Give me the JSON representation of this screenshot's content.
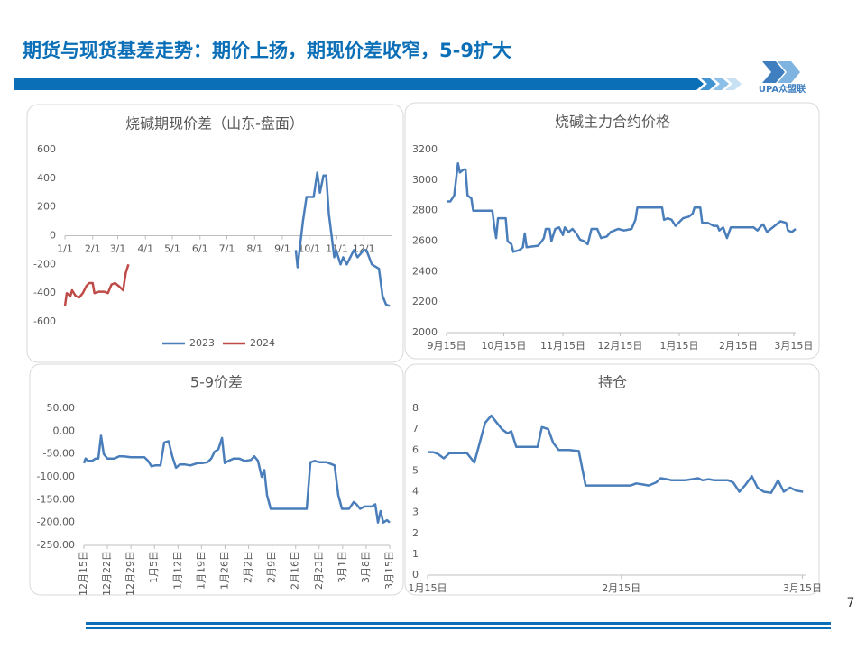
{
  "header": {
    "title": "期货与现货基差走势：期价上扬，期现价差收窄，5-9扩大",
    "logo_text": "UPA众盟联"
  },
  "page_number": "7",
  "chart_data": [
    {
      "type": "line",
      "title": "烧碱期现价差（山东-盘面）",
      "grid": false,
      "legend": "bottom",
      "xlim": [
        1,
        366
      ],
      "xticks": [
        {
          "value": 1,
          "label": "1/1"
        },
        {
          "value": 32,
          "label": "2/1"
        },
        {
          "value": 60,
          "label": "3/1"
        },
        {
          "value": 91,
          "label": "4/1"
        },
        {
          "value": 121,
          "label": "5/1"
        },
        {
          "value": 152,
          "label": "6/1"
        },
        {
          "value": 182,
          "label": "7/1"
        },
        {
          "value": 213,
          "label": "8/1"
        },
        {
          "value": 244,
          "label": "9/1"
        },
        {
          "value": 274,
          "label": "10/1"
        },
        {
          "value": 305,
          "label": "11/1"
        },
        {
          "value": 335,
          "label": "12/1"
        }
      ],
      "ylim": [
        -600,
        600
      ],
      "yticks": [
        -600,
        -400,
        -200,
        0,
        200,
        400,
        600
      ],
      "series": [
        {
          "name": "2023",
          "color": "#4a7ebb",
          "x": [
            259,
            261,
            267,
            271,
            279,
            283,
            286,
            290,
            293,
            296,
            299,
            302,
            304,
            309,
            312,
            316,
            324,
            328,
            335,
            338,
            344,
            352,
            356,
            360,
            364
          ],
          "values": [
            -100,
            -220,
            100,
            270,
            270,
            440,
            300,
            420,
            420,
            150,
            0,
            -150,
            -100,
            -200,
            -150,
            -200,
            -100,
            -150,
            -100,
            -100,
            -200,
            -230,
            -420,
            -480,
            -490
          ]
        },
        {
          "name": "2024",
          "color": "#be4b48",
          "x": [
            1,
            3,
            7,
            9,
            13,
            17,
            21,
            25,
            28,
            32,
            34,
            39,
            45,
            49,
            53,
            57,
            61,
            66,
            69,
            72
          ],
          "values": [
            -490,
            -400,
            -420,
            -380,
            -420,
            -430,
            -400,
            -350,
            -330,
            -330,
            -400,
            -390,
            -390,
            -400,
            -340,
            -330,
            -350,
            -380,
            -260,
            -200
          ]
        }
      ]
    },
    {
      "type": "line",
      "title": "烧碱主力合约价格",
      "grid": false,
      "xlim": [
        0,
        183
      ],
      "xticks": [
        {
          "value": 0,
          "label": "9月15日"
        },
        {
          "value": 30,
          "label": "10月15日"
        },
        {
          "value": 61,
          "label": "11月15日"
        },
        {
          "value": 91,
          "label": "12月15日"
        },
        {
          "value": 122,
          "label": "1月15日"
        },
        {
          "value": 153,
          "label": "2月15日"
        },
        {
          "value": 182,
          "label": "3月15日"
        }
      ],
      "ylim": [
        2000,
        3200
      ],
      "yticks": [
        2000,
        2200,
        2400,
        2600,
        2800,
        3000,
        3200
      ],
      "x": [
        0,
        2,
        4,
        6,
        7,
        9,
        10,
        11,
        13,
        14,
        24,
        25,
        26,
        27,
        31,
        32,
        34,
        35,
        38,
        40,
        41,
        42,
        48,
        50,
        51,
        52,
        54,
        55,
        57,
        59,
        61,
        62,
        64,
        66,
        68,
        70,
        72,
        74,
        76,
        79,
        81,
        84,
        86,
        88,
        90,
        93,
        97,
        99,
        100,
        105,
        113,
        114,
        116,
        118,
        120,
        124,
        127,
        129,
        130,
        133,
        134,
        137,
        140,
        142,
        143,
        145,
        147,
        149,
        161,
        163,
        165,
        166,
        168,
        170,
        173,
        175,
        178,
        179,
        181,
        183
      ],
      "series": [
        {
          "color": "#4a7ebb",
          "values": [
            2860,
            2860,
            2900,
            3110,
            3050,
            3070,
            3070,
            2900,
            2880,
            2800,
            2800,
            2700,
            2620,
            2750,
            2750,
            2600,
            2580,
            2530,
            2540,
            2560,
            2650,
            2560,
            2570,
            2600,
            2620,
            2680,
            2680,
            2600,
            2680,
            2690,
            2640,
            2690,
            2660,
            2680,
            2650,
            2610,
            2600,
            2580,
            2680,
            2680,
            2620,
            2630,
            2660,
            2670,
            2680,
            2670,
            2680,
            2740,
            2820,
            2820,
            2820,
            2740,
            2750,
            2740,
            2700,
            2750,
            2760,
            2780,
            2820,
            2820,
            2720,
            2720,
            2700,
            2700,
            2670,
            2690,
            2620,
            2690,
            2690,
            2670,
            2700,
            2710,
            2660,
            2680,
            2710,
            2730,
            2720,
            2670,
            2660,
            2680
          ]
        }
      ]
    },
    {
      "type": "line",
      "title": "5-9价差",
      "grid": false,
      "xlabel_rotate": true,
      "xlim": [
        0,
        91
      ],
      "xticks": [
        {
          "value": 0,
          "label": "12月15日"
        },
        {
          "value": 7,
          "label": "12月22日"
        },
        {
          "value": 14,
          "label": "12月29日"
        },
        {
          "value": 21,
          "label": "1月5日"
        },
        {
          "value": 28,
          "label": "1月12日"
        },
        {
          "value": 35,
          "label": "1月19日"
        },
        {
          "value": 42,
          "label": "1月26日"
        },
        {
          "value": 49,
          "label": "2月2日"
        },
        {
          "value": 56,
          "label": "2月9日"
        },
        {
          "value": 63,
          "label": "2月16日"
        },
        {
          "value": 70,
          "label": "2月23日"
        },
        {
          "value": 77,
          "label": "3月1日"
        },
        {
          "value": 84,
          "label": "3月8日"
        },
        {
          "value": 91,
          "label": "3月15日"
        }
      ],
      "ylim": [
        -250,
        50
      ],
      "yticks": [
        {
          "value": -250,
          "label": "-250.00"
        },
        {
          "value": -200,
          "label": "-200.00"
        },
        {
          "value": -150,
          "label": "-150.00"
        },
        {
          "value": -100,
          "label": "-100.00"
        },
        {
          "value": -50,
          "label": "-50.00"
        },
        {
          "value": 0,
          "label": "0.00"
        },
        {
          "value": 50,
          "label": "50.00"
        }
      ],
      "x": [
        0,
        0.5,
        1.3,
        2.4,
        3.5,
        4.3,
        5.1,
        5.9,
        7,
        9.1,
        10.5,
        11.8,
        14,
        18,
        19.1,
        20.1,
        21.2,
        22.8,
        23.9,
        25.2,
        26.3,
        27.4,
        28.5,
        30.1,
        31.7,
        33.8,
        35.2,
        36.8,
        37.9,
        38.9,
        40,
        41.1,
        41.9,
        43,
        44.6,
        46.2,
        47.8,
        49.7,
        50.7,
        51.8,
        52.9,
        53.7,
        54.5,
        55.6,
        66.3,
        67.4,
        68.7,
        70.1,
        72.2,
        73.6,
        74.6,
        75.7,
        76.8,
        78.9,
        80.3,
        81.1,
        82.2,
        83.5,
        85.7,
        86.7,
        87.5,
        88.3,
        89.1,
        90.2,
        91
      ],
      "series": [
        {
          "color": "#4a7ebb",
          "values": [
            -70,
            -60,
            -65,
            -65,
            -60,
            -60,
            -10,
            -50,
            -60,
            -60,
            -55,
            -55,
            -57,
            -57,
            -65,
            -77,
            -75,
            -75,
            -25,
            -22,
            -55,
            -80,
            -73,
            -73,
            -75,
            -70,
            -70,
            -68,
            -60,
            -45,
            -40,
            -15,
            -70,
            -65,
            -60,
            -60,
            -65,
            -63,
            -55,
            -65,
            -100,
            -85,
            -140,
            -170,
            -170,
            -68,
            -65,
            -68,
            -68,
            -72,
            -75,
            -140,
            -170,
            -170,
            -155,
            -160,
            -170,
            -165,
            -165,
            -160,
            -200,
            -175,
            -200,
            -195,
            -200
          ]
        }
      ]
    },
    {
      "type": "line",
      "title": "持仓",
      "grid": false,
      "xlim": [
        0,
        60.5
      ],
      "xticks": [
        {
          "value": 0,
          "label": "1月15日"
        },
        {
          "value": 31,
          "label": "2月15日"
        },
        {
          "value": 60,
          "label": "3月15日"
        }
      ],
      "ylim": [
        0,
        8
      ],
      "yticks": [
        0,
        1,
        2,
        3,
        4,
        5,
        6,
        7,
        8
      ],
      "x": [
        0,
        0.9,
        1.7,
        2.6,
        3.5,
        6.3,
        7.5,
        8.3,
        9.2,
        10.2,
        11.1,
        11.9,
        12.8,
        13.4,
        14.2,
        17.6,
        18.3,
        19.3,
        20.1,
        21,
        22.7,
        24.2,
        25.3,
        32.5,
        33.4,
        34.4,
        35.4,
        36.6,
        37.3,
        38.3,
        39.1,
        41.2,
        42.3,
        43.3,
        44,
        45,
        45.9,
        48.1,
        48.9,
        49.9,
        50.8,
        51.9,
        52.8,
        53.8,
        55,
        56.1,
        57,
        58,
        59,
        60.1
      ],
      "series": [
        {
          "color": "#4a7ebb",
          "values": [
            5.9,
            5.9,
            5.8,
            5.6,
            5.85,
            5.85,
            5.4,
            6.3,
            7.3,
            7.65,
            7.3,
            7.0,
            6.8,
            6.9,
            6.15,
            6.15,
            7.1,
            7.0,
            6.35,
            6.0,
            6.0,
            5.95,
            4.3,
            4.3,
            4.4,
            4.35,
            4.3,
            4.45,
            4.65,
            4.6,
            4.55,
            4.55,
            4.6,
            4.65,
            4.55,
            4.6,
            4.55,
            4.55,
            4.45,
            4.0,
            4.3,
            4.75,
            4.2,
            4.0,
            3.95,
            4.55,
            4.0,
            4.2,
            4.05,
            4.0
          ]
        }
      ]
    }
  ]
}
